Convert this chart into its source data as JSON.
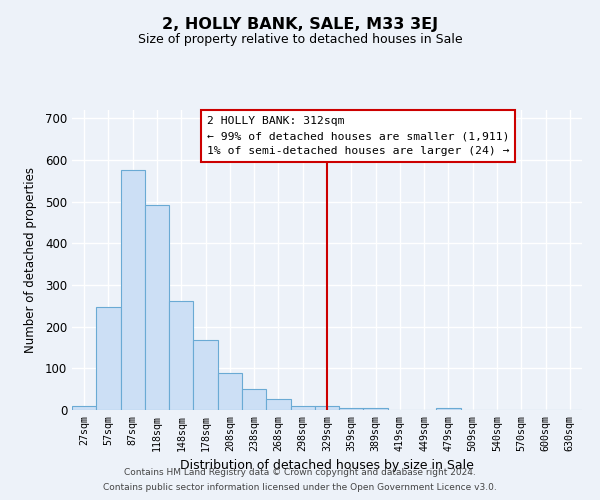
{
  "title": "2, HOLLY BANK, SALE, M33 3EJ",
  "subtitle": "Size of property relative to detached houses in Sale",
  "xlabel": "Distribution of detached houses by size in Sale",
  "ylabel": "Number of detached properties",
  "bar_labels": [
    "27sqm",
    "57sqm",
    "87sqm",
    "118sqm",
    "148sqm",
    "178sqm",
    "208sqm",
    "238sqm",
    "268sqm",
    "298sqm",
    "329sqm",
    "359sqm",
    "389sqm",
    "419sqm",
    "449sqm",
    "479sqm",
    "509sqm",
    "540sqm",
    "570sqm",
    "600sqm",
    "630sqm"
  ],
  "bar_values": [
    10,
    247,
    575,
    492,
    261,
    168,
    90,
    50,
    27,
    10,
    10,
    5,
    5,
    0,
    0,
    5,
    0,
    0,
    0,
    0,
    0
  ],
  "bar_color": "#ccdff5",
  "bar_edge_color": "#6aaad4",
  "vline_x": 10,
  "vline_color": "#cc0000",
  "ylim": [
    0,
    720
  ],
  "yticks": [
    0,
    100,
    200,
    300,
    400,
    500,
    600,
    700
  ],
  "annotation_title": "2 HOLLY BANK: 312sqm",
  "annotation_line1": "← 99% of detached houses are smaller (1,911)",
  "annotation_line2": "1% of semi-detached houses are larger (24) →",
  "footnote1": "Contains HM Land Registry data © Crown copyright and database right 2024.",
  "footnote2": "Contains public sector information licensed under the Open Government Licence v3.0.",
  "bg_color": "#edf2f9",
  "grid_color": "#ffffff"
}
